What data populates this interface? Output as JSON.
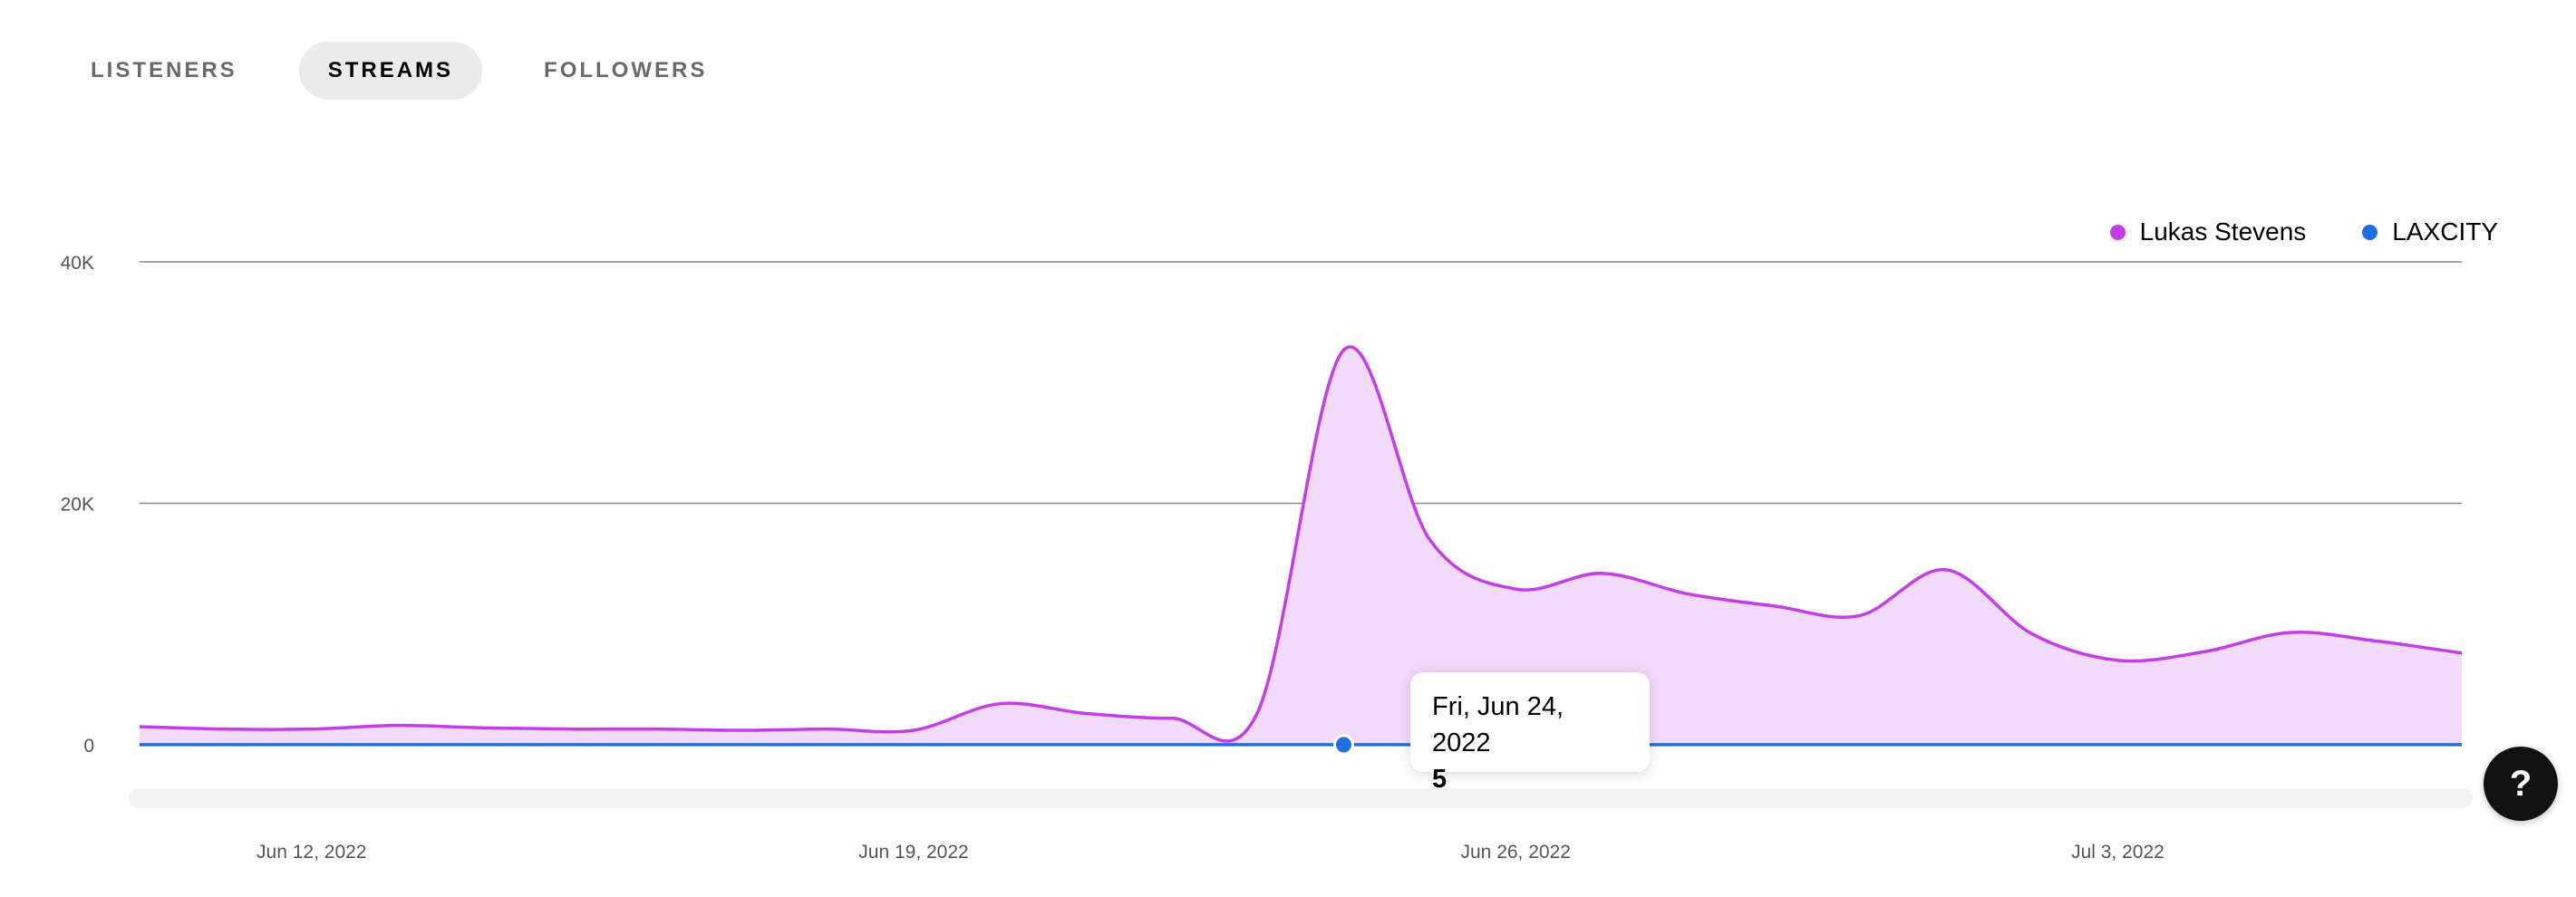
{
  "tabs": [
    {
      "label": "LISTENERS",
      "active": false
    },
    {
      "label": "STREAMS",
      "active": true
    },
    {
      "label": "FOLLOWERS",
      "active": false
    }
  ],
  "legend": [
    {
      "label": "Lukas Stevens",
      "color": "#c43ee8"
    },
    {
      "label": "LAXCITY",
      "color": "#1e6fe0"
    }
  ],
  "tooltip": {
    "date": "Fri, Jun 24, 2022",
    "value": "5"
  },
  "help_label": "?",
  "chart_data": {
    "type": "area",
    "yticks": [
      {
        "label": "40K",
        "value": 40000
      },
      {
        "label": "20K",
        "value": 20000
      },
      {
        "label": "0",
        "value": 0
      }
    ],
    "ylim": [
      0,
      40000
    ],
    "xticks": [
      {
        "label": "Jun 12, 2022",
        "value": "2022-06-12"
      },
      {
        "label": "Jun 19, 2022",
        "value": "2022-06-19"
      },
      {
        "label": "Jun 26, 2022",
        "value": "2022-06-26"
      },
      {
        "label": "Jul 3, 2022",
        "value": "2022-07-03"
      }
    ],
    "x": [
      "2022-06-10",
      "2022-06-11",
      "2022-06-12",
      "2022-06-13",
      "2022-06-14",
      "2022-06-15",
      "2022-06-16",
      "2022-06-17",
      "2022-06-18",
      "2022-06-19",
      "2022-06-20",
      "2022-06-21",
      "2022-06-22",
      "2022-06-23",
      "2022-06-24",
      "2022-06-25",
      "2022-06-26",
      "2022-06-27",
      "2022-06-28",
      "2022-06-29",
      "2022-06-30",
      "2022-07-01",
      "2022-07-02",
      "2022-07-03",
      "2022-07-04",
      "2022-07-05",
      "2022-07-06",
      "2022-07-07"
    ],
    "series": [
      {
        "name": "Lukas Stevens",
        "color": "#c43ee8",
        "fill": "#f2dafb",
        "values": [
          1500,
          1300,
          1300,
          1600,
          1400,
          1300,
          1300,
          1200,
          1300,
          1200,
          3400,
          2600,
          2200,
          2700,
          32700,
          17000,
          12900,
          14200,
          12500,
          11500,
          10700,
          14500,
          9200,
          7000,
          7700,
          9300,
          8600,
          7600
        ]
      },
      {
        "name": "LAXCITY",
        "color": "#1e6fe0",
        "values": [
          5,
          5,
          5,
          5,
          5,
          5,
          5,
          5,
          5,
          5,
          5,
          5,
          5,
          5,
          5,
          5,
          5,
          5,
          5,
          5,
          5,
          5,
          5,
          5,
          5,
          5,
          5,
          5
        ]
      }
    ],
    "highlight": {
      "series": "LAXCITY",
      "x": "2022-06-24",
      "value": 5
    },
    "grid": true,
    "legend_position": "top-right"
  }
}
